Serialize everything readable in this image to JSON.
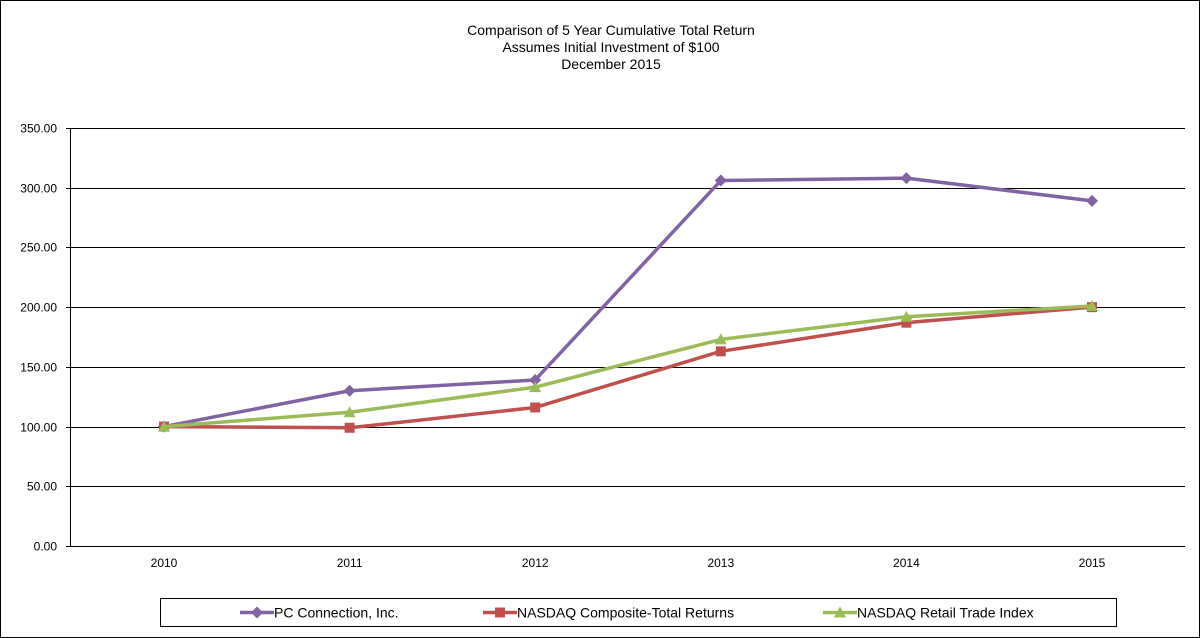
{
  "chart_data": {
    "type": "line",
    "title": [
      "Comparison of 5 Year Cumulative Total Return",
      "Assumes Initial Investment of $100",
      "December 2015"
    ],
    "categories": [
      "2010",
      "2011",
      "2012",
      "2013",
      "2014",
      "2015"
    ],
    "y_ticks": [
      "0.00",
      "50.00",
      "100.00",
      "150.00",
      "200.00",
      "250.00",
      "300.00",
      "350.00"
    ],
    "ylim": [
      0,
      350
    ],
    "grid": "horizontal",
    "legend_position": "bottom",
    "series": [
      {
        "name": "PC Connection, Inc.",
        "values": [
          100,
          130,
          139,
          306,
          308,
          289
        ],
        "color": "#8064A2",
        "marker": "diamond"
      },
      {
        "name": "NASDAQ Composite-Total Returns",
        "values": [
          100,
          99,
          116,
          163,
          187,
          200
        ],
        "color": "#C0504D",
        "marker": "square"
      },
      {
        "name": "NASDAQ Retail Trade Index",
        "values": [
          100,
          112,
          133,
          173,
          192,
          201
        ],
        "color": "#9BBB59",
        "marker": "triangle"
      }
    ]
  }
}
